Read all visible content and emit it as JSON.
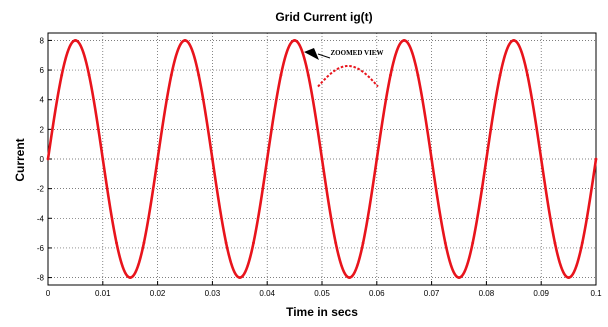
{
  "chart_data": {
    "type": "line",
    "title": "Grid Current ig(t)",
    "xlabel": "Time in secs",
    "ylabel": "Current",
    "xlim": [
      0,
      0.1
    ],
    "ylim": [
      -8.5,
      8.5
    ],
    "x_ticks": [
      0,
      0.01,
      0.02,
      0.03,
      0.04,
      0.05,
      0.06,
      0.07,
      0.08,
      0.09,
      0.1
    ],
    "x_tick_labels": [
      "0",
      "0.01",
      "0.02",
      "0.03",
      "0.04",
      "0.05",
      "0.06",
      "0.07",
      "0.08",
      "0.09",
      "0.1"
    ],
    "y_ticks": [
      8,
      6,
      4,
      2,
      0,
      -2,
      -4,
      -6,
      -8
    ],
    "y_tick_labels": [
      "8",
      "6",
      "4",
      "2",
      "0",
      "-2",
      "-4",
      "-6",
      "-8"
    ],
    "grid": true,
    "grid_style": "dotted",
    "series": [
      {
        "amplitude": 8,
        "frequency_hz": 50,
        "color": "#e8141c",
        "x": [
          0,
          0.0025,
          0.005,
          0.0075,
          0.01,
          0.0125,
          0.015,
          0.0175,
          0.02,
          0.0225,
          0.025,
          0.0275,
          0.03,
          0.0325,
          0.035,
          0.0375,
          0.04,
          0.0425,
          0.045,
          0.0475,
          0.05,
          0.0525,
          0.055,
          0.0575,
          0.06,
          0.0625,
          0.065,
          0.0675,
          0.07,
          0.0725,
          0.075,
          0.0775,
          0.08,
          0.0825,
          0.085,
          0.0875,
          0.09,
          0.0925,
          0.095,
          0.0975,
          0.1
        ],
        "y": [
          0,
          5.66,
          8,
          5.66,
          0,
          -5.66,
          -8,
          -5.66,
          0,
          5.66,
          8,
          5.66,
          0,
          -5.66,
          -8,
          -5.66,
          0,
          5.66,
          8,
          5.66,
          0,
          -5.66,
          -8,
          -5.66,
          0,
          5.66,
          8,
          5.66,
          0,
          -5.66,
          -8,
          -5.66,
          0,
          5.66,
          8,
          5.66,
          0,
          -5.66,
          -8,
          -5.66,
          0
        ]
      }
    ],
    "annotation": {
      "text": "ZOOMED VIEW",
      "points_to": {
        "x": 0.045,
        "y": 8
      }
    }
  }
}
